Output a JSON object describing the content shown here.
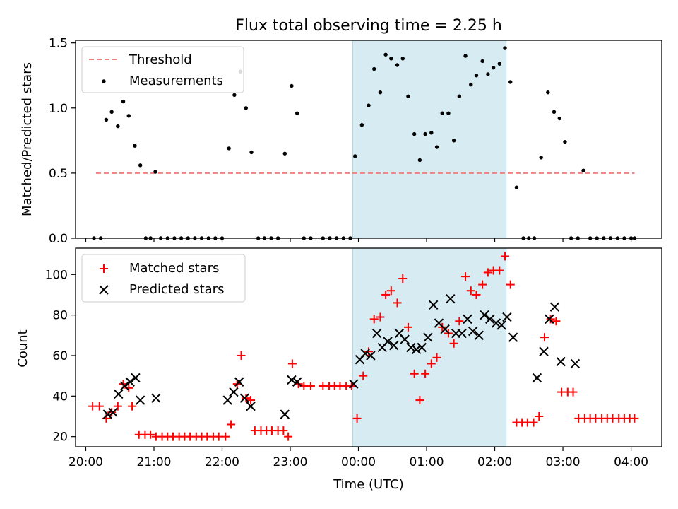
{
  "figure": {
    "title": "Flux total observing time = 2.25 h",
    "xlabel": "Time (UTC)",
    "xtick_labels": [
      "20:00",
      "21:00",
      "22:00",
      "23:00",
      "00:00",
      "01:00",
      "02:00",
      "03:00",
      "04:00"
    ]
  },
  "chart_data": [
    {
      "type": "scatter",
      "panel": "top",
      "ylabel": "Matched/Predicted stars",
      "ylim": [
        0,
        1.52
      ],
      "yticks": [
        "0.0",
        "0.5",
        "1.0",
        "1.5"
      ],
      "xlim_hours": [
        19.85,
        4.45
      ],
      "x_unit": "hours UTC (values < 12 are after midnight)",
      "shaded_interval": [
        "23:55",
        "02:10"
      ],
      "legend": {
        "placement": "top-left",
        "entries": [
          "Threshold",
          "Measurements"
        ]
      },
      "threshold": {
        "name": "Threshold",
        "value": 0.5,
        "x_range": [
          20.15,
          4.05
        ],
        "color": "#f08080",
        "style": "dashed"
      },
      "measurements": {
        "name": "Measurements",
        "color": "#000000",
        "points": [
          [
            20.12,
            0
          ],
          [
            20.22,
            0
          ],
          [
            20.3,
            0.91
          ],
          [
            20.38,
            0.97
          ],
          [
            20.47,
            0.86
          ],
          [
            20.55,
            1.05
          ],
          [
            20.63,
            0.94
          ],
          [
            20.72,
            0.71
          ],
          [
            20.8,
            0.56
          ],
          [
            20.88,
            0
          ],
          [
            20.95,
            0
          ],
          [
            21.02,
            0.51
          ],
          [
            21.1,
            0
          ],
          [
            21.2,
            0
          ],
          [
            21.3,
            0
          ],
          [
            21.4,
            0
          ],
          [
            21.5,
            0
          ],
          [
            21.6,
            0
          ],
          [
            21.7,
            0
          ],
          [
            21.8,
            0
          ],
          [
            21.9,
            0
          ],
          [
            22.0,
            0
          ],
          [
            22.1,
            0.69
          ],
          [
            22.18,
            1.1
          ],
          [
            22.27,
            1.28
          ],
          [
            22.35,
            1.0
          ],
          [
            22.43,
            0.66
          ],
          [
            22.53,
            0
          ],
          [
            22.62,
            0
          ],
          [
            22.72,
            0
          ],
          [
            22.82,
            0
          ],
          [
            22.92,
            0.65
          ],
          [
            23.02,
            1.17
          ],
          [
            23.1,
            0.96
          ],
          [
            23.2,
            0
          ],
          [
            23.3,
            0
          ],
          [
            23.48,
            0
          ],
          [
            23.58,
            0
          ],
          [
            23.68,
            0
          ],
          [
            23.78,
            0
          ],
          [
            23.88,
            0
          ],
          [
            23.95,
            0.63
          ],
          [
            0.05,
            0.87
          ],
          [
            0.15,
            1.02
          ],
          [
            0.23,
            1.3
          ],
          [
            0.32,
            1.12
          ],
          [
            0.4,
            1.41
          ],
          [
            0.48,
            1.38
          ],
          [
            0.57,
            1.33
          ],
          [
            0.65,
            1.38
          ],
          [
            0.73,
            1.09
          ],
          [
            0.82,
            0.8
          ],
          [
            0.9,
            0.6
          ],
          [
            0.98,
            0.8
          ],
          [
            1.07,
            0.81
          ],
          [
            1.15,
            0.7
          ],
          [
            1.23,
            0.96
          ],
          [
            1.32,
            0.96
          ],
          [
            1.4,
            0.75
          ],
          [
            1.48,
            1.09
          ],
          [
            1.57,
            1.4
          ],
          [
            1.65,
            1.18
          ],
          [
            1.73,
            1.25
          ],
          [
            1.82,
            1.36
          ],
          [
            1.9,
            1.26
          ],
          [
            1.98,
            1.31
          ],
          [
            2.07,
            1.34
          ],
          [
            2.15,
            1.46
          ],
          [
            2.23,
            1.2
          ],
          [
            2.32,
            0.39
          ],
          [
            2.42,
            0
          ],
          [
            2.5,
            0
          ],
          [
            2.58,
            0
          ],
          [
            2.68,
            0.62
          ],
          [
            2.78,
            1.12
          ],
          [
            2.87,
            0.97
          ],
          [
            2.95,
            0.92
          ],
          [
            3.03,
            0.74
          ],
          [
            3.12,
            0
          ],
          [
            3.22,
            0
          ],
          [
            3.3,
            0.52
          ],
          [
            3.4,
            0
          ],
          [
            3.5,
            0
          ],
          [
            3.6,
            0
          ],
          [
            3.7,
            0
          ],
          [
            3.8,
            0
          ],
          [
            3.9,
            0
          ],
          [
            4.0,
            0
          ],
          [
            4.05,
            0
          ]
        ]
      }
    },
    {
      "type": "scatter",
      "panel": "bottom",
      "ylabel": "Count",
      "ylim": [
        15,
        113
      ],
      "yticks": [
        "20",
        "40",
        "60",
        "80",
        "100"
      ],
      "xlim_hours": [
        19.85,
        4.45
      ],
      "shaded_interval": [
        "23:55",
        "02:10"
      ],
      "legend": {
        "placement": "top-left",
        "entries": [
          "Matched stars",
          "Predicted stars"
        ]
      },
      "series": [
        {
          "name": "Matched stars",
          "marker": "plus",
          "color": "#ff0000",
          "points": [
            [
              20.1,
              35
            ],
            [
              20.2,
              35
            ],
            [
              20.3,
              29
            ],
            [
              20.38,
              32
            ],
            [
              20.47,
              35
            ],
            [
              20.55,
              46
            ],
            [
              20.63,
              44
            ],
            [
              20.68,
              35
            ],
            [
              20.78,
              21
            ],
            [
              20.87,
              21
            ],
            [
              20.95,
              21
            ],
            [
              21.03,
              20
            ],
            [
              21.12,
              20
            ],
            [
              21.2,
              20
            ],
            [
              21.28,
              20
            ],
            [
              21.37,
              20
            ],
            [
              21.45,
              20
            ],
            [
              21.53,
              20
            ],
            [
              21.62,
              20
            ],
            [
              21.7,
              20
            ],
            [
              21.78,
              20
            ],
            [
              21.87,
              20
            ],
            [
              21.95,
              20
            ],
            [
              22.05,
              20
            ],
            [
              22.13,
              26
            ],
            [
              22.22,
              46
            ],
            [
              22.28,
              60
            ],
            [
              22.35,
              39
            ],
            [
              22.42,
              38
            ],
            [
              22.48,
              23
            ],
            [
              22.57,
              23
            ],
            [
              22.65,
              23
            ],
            [
              22.73,
              23
            ],
            [
              22.82,
              23
            ],
            [
              22.9,
              23
            ],
            [
              22.97,
              20
            ],
            [
              23.03,
              56
            ],
            [
              23.12,
              46
            ],
            [
              23.2,
              45
            ],
            [
              23.3,
              45
            ],
            [
              23.48,
              45
            ],
            [
              23.57,
              45
            ],
            [
              23.65,
              45
            ],
            [
              23.73,
              45
            ],
            [
              23.82,
              45
            ],
            [
              23.9,
              45
            ],
            [
              23.98,
              29
            ],
            [
              0.07,
              50
            ],
            [
              0.15,
              62
            ],
            [
              0.23,
              78
            ],
            [
              0.32,
              79
            ],
            [
              0.4,
              90
            ],
            [
              0.48,
              92
            ],
            [
              0.57,
              86
            ],
            [
              0.65,
              98
            ],
            [
              0.73,
              74
            ],
            [
              0.82,
              51
            ],
            [
              0.9,
              38
            ],
            [
              0.98,
              51
            ],
            [
              1.07,
              56
            ],
            [
              1.15,
              59
            ],
            [
              1.23,
              74
            ],
            [
              1.32,
              71
            ],
            [
              1.4,
              66
            ],
            [
              1.48,
              77
            ],
            [
              1.57,
              99
            ],
            [
              1.65,
              92
            ],
            [
              1.73,
              90
            ],
            [
              1.82,
              95
            ],
            [
              1.9,
              101
            ],
            [
              1.98,
              102
            ],
            [
              2.07,
              102
            ],
            [
              2.15,
              109
            ],
            [
              2.23,
              95
            ],
            [
              2.32,
              27
            ],
            [
              2.4,
              27
            ],
            [
              2.48,
              27
            ],
            [
              2.57,
              27
            ],
            [
              2.65,
              30
            ],
            [
              2.73,
              69
            ],
            [
              2.82,
              78
            ],
            [
              2.9,
              77
            ],
            [
              2.98,
              42
            ],
            [
              3.07,
              42
            ],
            [
              3.15,
              42
            ],
            [
              3.23,
              29
            ],
            [
              3.32,
              29
            ],
            [
              3.4,
              29
            ],
            [
              3.48,
              29
            ],
            [
              3.57,
              29
            ],
            [
              3.65,
              29
            ],
            [
              3.73,
              29
            ],
            [
              3.82,
              29
            ],
            [
              3.9,
              29
            ],
            [
              3.98,
              29
            ],
            [
              4.05,
              29
            ]
          ]
        },
        {
          "name": "Predicted stars",
          "marker": "x",
          "color": "#000000",
          "points": [
            [
              20.32,
              31
            ],
            [
              20.4,
              32
            ],
            [
              20.48,
              41
            ],
            [
              20.57,
              45
            ],
            [
              20.65,
              47
            ],
            [
              20.73,
              49
            ],
            [
              20.8,
              38
            ],
            [
              21.03,
              39
            ],
            [
              22.08,
              38
            ],
            [
              22.17,
              42
            ],
            [
              22.25,
              47
            ],
            [
              22.33,
              39
            ],
            [
              22.42,
              35
            ],
            [
              22.92,
              31
            ],
            [
              23.02,
              48
            ],
            [
              23.1,
              47
            ],
            [
              23.93,
              46
            ],
            [
              0.02,
              58
            ],
            [
              0.1,
              61
            ],
            [
              0.18,
              60
            ],
            [
              0.27,
              71
            ],
            [
              0.35,
              64
            ],
            [
              0.43,
              67
            ],
            [
              0.52,
              65
            ],
            [
              0.6,
              71
            ],
            [
              0.68,
              68
            ],
            [
              0.77,
              64
            ],
            [
              0.85,
              63
            ],
            [
              0.93,
              64
            ],
            [
              1.02,
              69
            ],
            [
              1.1,
              85
            ],
            [
              1.18,
              76
            ],
            [
              1.27,
              73
            ],
            [
              1.35,
              88
            ],
            [
              1.43,
              71
            ],
            [
              1.52,
              71
            ],
            [
              1.6,
              78
            ],
            [
              1.68,
              72
            ],
            [
              1.77,
              70
            ],
            [
              1.85,
              80
            ],
            [
              1.93,
              78
            ],
            [
              2.02,
              76
            ],
            [
              2.1,
              75
            ],
            [
              2.18,
              79
            ],
            [
              2.27,
              69
            ],
            [
              2.62,
              49
            ],
            [
              2.72,
              62
            ],
            [
              2.8,
              78
            ],
            [
              2.88,
              84
            ],
            [
              2.97,
              57
            ],
            [
              3.18,
              56
            ]
          ]
        }
      ]
    }
  ]
}
